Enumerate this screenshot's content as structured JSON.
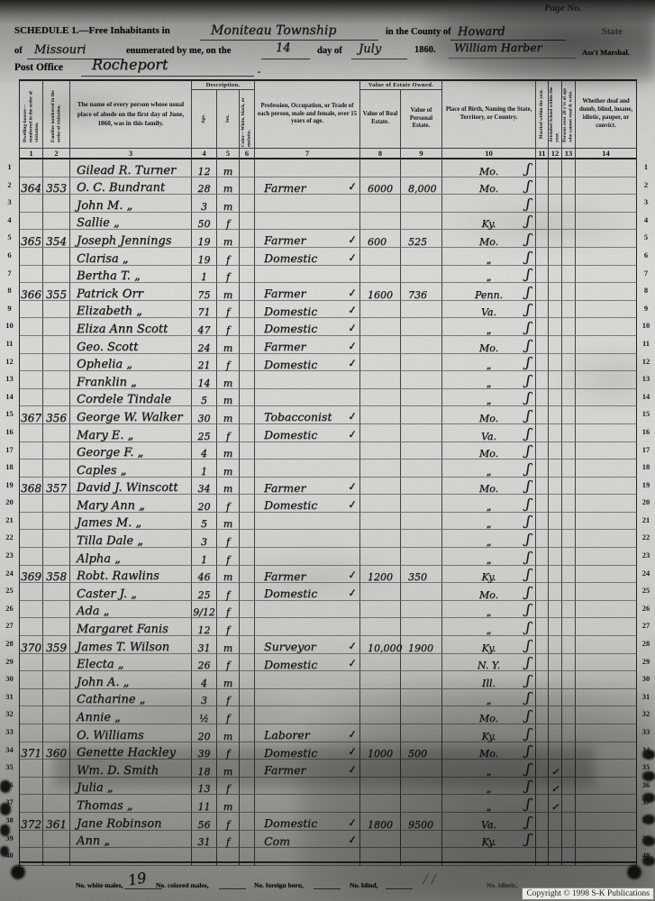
{
  "page": {
    "page_no_label": "Page No.",
    "copyright": "Copyright © 1998 S-K Publications"
  },
  "header": {
    "schedule_label": "SCHEDULE 1.—Free Inhabitants in",
    "township": "Moniteau Township",
    "county_label": "in the County of",
    "county": "Howard",
    "state_suffix": "State",
    "of_label": "of",
    "state": "Missouri",
    "enumerated_label": "enumerated by me, on the",
    "day": "14",
    "day_label": "day of",
    "month": "July",
    "year": "1860.",
    "marshal_name": "William Harber",
    "marshal_title": "Ass't Marshal.",
    "post_office_label": "Post Office",
    "post_office": "Rocheport",
    "period": "."
  },
  "marks": {
    "check": "✓",
    "flourish": "ʃ",
    "ditto": "„"
  },
  "table": {
    "description_group": "Description.",
    "value_group": "Value of Estate Owned.",
    "columns": [
      {
        "num": "1",
        "label": "Dwelling-houses— numbered in the order of visitation."
      },
      {
        "num": "2",
        "label": "Families numbered in the order of visitation."
      },
      {
        "num": "3",
        "label": "The name of every person whose usual place of abode on the first day of June, 1860, was in this family."
      },
      {
        "num": "4",
        "label": "Age."
      },
      {
        "num": "5",
        "label": "Sex."
      },
      {
        "num": "6",
        "label": "Color—White, black, or mulatto."
      },
      {
        "num": "7",
        "label": "Profession, Occupation, or Trade of each person, male and female, over 15 years of age."
      },
      {
        "num": "8",
        "label": "Value of Real Estate."
      },
      {
        "num": "9",
        "label": "Value of Personal Estate."
      },
      {
        "num": "10",
        "label": "Place of Birth, Naming the State, Territory, or Country."
      },
      {
        "num": "11",
        "label": "Married within the year."
      },
      {
        "num": "12",
        "label": "Attended School within the year."
      },
      {
        "num": "13",
        "label": "Persons over 20 y'rs of age who cannot read & write."
      },
      {
        "num": "14",
        "label": "Whether deaf and dumb, blind, insane, idiotic, pauper, or convict."
      }
    ],
    "rows": [
      {
        "n": "1",
        "dw": "",
        "fam": "",
        "name": "Gilead R. Turner",
        "age": "12",
        "sex": "m",
        "occ": "",
        "re": "",
        "pe": "",
        "birth": "Mo.",
        "tick": false,
        "school": false
      },
      {
        "n": "2",
        "dw": "364",
        "fam": "353",
        "name": "O. C. Bundrant",
        "age": "28",
        "sex": "m",
        "occ": "Farmer",
        "re": "6000",
        "pe": "8,000",
        "birth": "Mo.",
        "tick": true,
        "school": false
      },
      {
        "n": "3",
        "dw": "",
        "fam": "",
        "name": "John M. „",
        "age": "3",
        "sex": "m",
        "occ": "",
        "re": "",
        "pe": "",
        "birth": "",
        "tick": false,
        "school": false
      },
      {
        "n": "4",
        "dw": "",
        "fam": "",
        "name": "Sallie „",
        "age": "50",
        "sex": "f",
        "occ": "",
        "re": "",
        "pe": "",
        "birth": "Ky.",
        "tick": false,
        "school": false
      },
      {
        "n": "5",
        "dw": "365",
        "fam": "354",
        "name": "Joseph Jennings",
        "age": "19",
        "sex": "m",
        "occ": "Farmer",
        "re": "600",
        "pe": "525",
        "birth": "Mo.",
        "tick": true,
        "school": false
      },
      {
        "n": "6",
        "dw": "",
        "fam": "",
        "name": "Clarisa „",
        "age": "19",
        "sex": "f",
        "occ": "Domestic",
        "re": "",
        "pe": "",
        "birth": "„",
        "tick": true,
        "school": false
      },
      {
        "n": "7",
        "dw": "",
        "fam": "",
        "name": "Bertha T. „",
        "age": "1",
        "sex": "f",
        "occ": "",
        "re": "",
        "pe": "",
        "birth": "„",
        "tick": false,
        "school": false
      },
      {
        "n": "8",
        "dw": "366",
        "fam": "355",
        "name": "Patrick Orr",
        "age": "75",
        "sex": "m",
        "occ": "Farmer",
        "re": "1600",
        "pe": "736",
        "birth": "Penn.",
        "tick": true,
        "school": false
      },
      {
        "n": "9",
        "dw": "",
        "fam": "",
        "name": "Elizabeth „",
        "age": "71",
        "sex": "f",
        "occ": "Domestic",
        "re": "",
        "pe": "",
        "birth": "Va.",
        "tick": true,
        "school": false
      },
      {
        "n": "10",
        "dw": "",
        "fam": "",
        "name": "Eliza Ann Scott",
        "age": "47",
        "sex": "f",
        "occ": "Domestic",
        "re": "",
        "pe": "",
        "birth": "„",
        "tick": true,
        "school": false
      },
      {
        "n": "11",
        "dw": "",
        "fam": "",
        "name": "Geo. Scott",
        "age": "24",
        "sex": "m",
        "occ": "Farmer",
        "re": "",
        "pe": "",
        "birth": "Mo.",
        "tick": true,
        "school": false
      },
      {
        "n": "12",
        "dw": "",
        "fam": "",
        "name": "Ophelia „",
        "age": "21",
        "sex": "f",
        "occ": "Domestic",
        "re": "",
        "pe": "",
        "birth": "„",
        "tick": true,
        "school": false
      },
      {
        "n": "13",
        "dw": "",
        "fam": "",
        "name": "Franklin „",
        "age": "14",
        "sex": "m",
        "occ": "",
        "re": "",
        "pe": "",
        "birth": "„",
        "tick": false,
        "school": false
      },
      {
        "n": "14",
        "dw": "",
        "fam": "",
        "name": "Cordele Tindale",
        "age": "5",
        "sex": "m",
        "occ": "",
        "re": "",
        "pe": "",
        "birth": "„",
        "tick": false,
        "school": false
      },
      {
        "n": "15",
        "dw": "367",
        "fam": "356",
        "name": "George W. Walker",
        "age": "30",
        "sex": "m",
        "occ": "Tobacconist",
        "re": "",
        "pe": "",
        "birth": "Mo.",
        "tick": true,
        "school": false
      },
      {
        "n": "16",
        "dw": "",
        "fam": "",
        "name": "Mary E. „",
        "age": "25",
        "sex": "f",
        "occ": "Domestic",
        "re": "",
        "pe": "",
        "birth": "Va.",
        "tick": true,
        "school": false
      },
      {
        "n": "17",
        "dw": "",
        "fam": "",
        "name": "George F. „",
        "age": "4",
        "sex": "m",
        "occ": "",
        "re": "",
        "pe": "",
        "birth": "Mo.",
        "tick": false,
        "school": false
      },
      {
        "n": "18",
        "dw": "",
        "fam": "",
        "name": "Caples „",
        "age": "1",
        "sex": "m",
        "occ": "",
        "re": "",
        "pe": "",
        "birth": "„",
        "tick": false,
        "school": false
      },
      {
        "n": "19",
        "dw": "368",
        "fam": "357",
        "name": "David J. Winscott",
        "age": "34",
        "sex": "m",
        "occ": "Farmer",
        "re": "",
        "pe": "",
        "birth": "Mo.",
        "tick": true,
        "school": false
      },
      {
        "n": "20",
        "dw": "",
        "fam": "",
        "name": "Mary Ann „",
        "age": "20",
        "sex": "f",
        "occ": "Domestic",
        "re": "",
        "pe": "",
        "birth": "„",
        "tick": true,
        "school": false
      },
      {
        "n": "21",
        "dw": "",
        "fam": "",
        "name": "James M. „",
        "age": "5",
        "sex": "m",
        "occ": "",
        "re": "",
        "pe": "",
        "birth": "„",
        "tick": false,
        "school": false
      },
      {
        "n": "22",
        "dw": "",
        "fam": "",
        "name": "Tilla Dale „",
        "age": "3",
        "sex": "f",
        "occ": "",
        "re": "",
        "pe": "",
        "birth": "„",
        "tick": false,
        "school": false
      },
      {
        "n": "23",
        "dw": "",
        "fam": "",
        "name": "Alpha „",
        "age": "1",
        "sex": "f",
        "occ": "",
        "re": "",
        "pe": "",
        "birth": "„",
        "tick": false,
        "school": false
      },
      {
        "n": "24",
        "dw": "369",
        "fam": "358",
        "name": "Robt. Rawlins",
        "age": "46",
        "sex": "m",
        "occ": "Farmer",
        "re": "1200",
        "pe": "350",
        "birth": "Ky.",
        "tick": true,
        "school": false
      },
      {
        "n": "25",
        "dw": "",
        "fam": "",
        "name": "Caster J. „",
        "age": "25",
        "sex": "f",
        "occ": "Domestic",
        "re": "",
        "pe": "",
        "birth": "Mo.",
        "tick": true,
        "school": false
      },
      {
        "n": "26",
        "dw": "",
        "fam": "",
        "name": "Ada „",
        "age": "9/12",
        "sex": "f",
        "occ": "",
        "re": "",
        "pe": "",
        "birth": "„",
        "tick": false,
        "school": false
      },
      {
        "n": "27",
        "dw": "",
        "fam": "",
        "name": "Margaret Fanis",
        "age": "12",
        "sex": "f",
        "occ": "",
        "re": "",
        "pe": "",
        "birth": "„",
        "tick": false,
        "school": false
      },
      {
        "n": "28",
        "dw": "370",
        "fam": "359",
        "name": "James T. Wilson",
        "age": "31",
        "sex": "m",
        "occ": "Surveyor",
        "re": "10,000",
        "pe": "1900",
        "birth": "Ky.",
        "tick": true,
        "school": false
      },
      {
        "n": "29",
        "dw": "",
        "fam": "",
        "name": "Electa „",
        "age": "26",
        "sex": "f",
        "occ": "Domestic",
        "re": "",
        "pe": "",
        "birth": "N. Y.",
        "tick": true,
        "school": false
      },
      {
        "n": "30",
        "dw": "",
        "fam": "",
        "name": "John A. „",
        "age": "4",
        "sex": "m",
        "occ": "",
        "re": "",
        "pe": "",
        "birth": "Ill.",
        "tick": false,
        "school": false
      },
      {
        "n": "31",
        "dw": "",
        "fam": "",
        "name": "Catharine „",
        "age": "3",
        "sex": "f",
        "occ": "",
        "re": "",
        "pe": "",
        "birth": "„",
        "tick": false,
        "school": false
      },
      {
        "n": "32",
        "dw": "",
        "fam": "",
        "name": "Annie „",
        "age": "½",
        "sex": "f",
        "occ": "",
        "re": "",
        "pe": "",
        "birth": "Mo.",
        "tick": false,
        "school": false
      },
      {
        "n": "33",
        "dw": "",
        "fam": "",
        "name": "O. Williams",
        "age": "20",
        "sex": "m",
        "occ": "Laborer",
        "re": "",
        "pe": "",
        "birth": "Ky.",
        "tick": true,
        "school": false
      },
      {
        "n": "34",
        "dw": "371",
        "fam": "360",
        "name": "Genette Hackley",
        "age": "39",
        "sex": "f",
        "occ": "Domestic",
        "re": "1000",
        "pe": "500",
        "birth": "Mo.",
        "tick": true,
        "school": false
      },
      {
        "n": "35",
        "dw": "",
        "fam": "",
        "name": "Wm. D. Smith",
        "age": "18",
        "sex": "m",
        "occ": "Farmer",
        "re": "",
        "pe": "",
        "birth": "„",
        "tick": true,
        "school": true
      },
      {
        "n": "36",
        "dw": "",
        "fam": "",
        "name": "Julia „",
        "age": "13",
        "sex": "f",
        "occ": "",
        "re": "",
        "pe": "",
        "birth": "„",
        "tick": false,
        "school": true
      },
      {
        "n": "37",
        "dw": "",
        "fam": "",
        "name": "Thomas „",
        "age": "11",
        "sex": "m",
        "occ": "",
        "re": "",
        "pe": "",
        "birth": "„",
        "tick": false,
        "school": true
      },
      {
        "n": "38",
        "dw": "372",
        "fam": "361",
        "name": "Jane Robinson",
        "age": "56",
        "sex": "f",
        "occ": "Domestic",
        "re": "1800",
        "pe": "9500",
        "birth": "Va.",
        "tick": true,
        "school": false
      },
      {
        "n": "39",
        "dw": "",
        "fam": "",
        "name": "Ann „",
        "age": "31",
        "sex": "f",
        "occ": "Com",
        "re": "",
        "pe": "",
        "birth": "Ky.",
        "tick": true,
        "school": false
      },
      {
        "n": "40",
        "dw": "",
        "fam": "",
        "name": "",
        "age": "",
        "sex": "",
        "occ": "",
        "re": "",
        "pe": "",
        "birth": "",
        "tick": false,
        "school": false
      }
    ]
  },
  "footer": {
    "white_males_label": "No. white males,",
    "white_males_value": "19",
    "colored_males_label": "No. colored males,",
    "foreign_born_label": "No. foreign born,",
    "blind_label": "No. blind,",
    "idiotic_label": "No. idiotic,"
  }
}
